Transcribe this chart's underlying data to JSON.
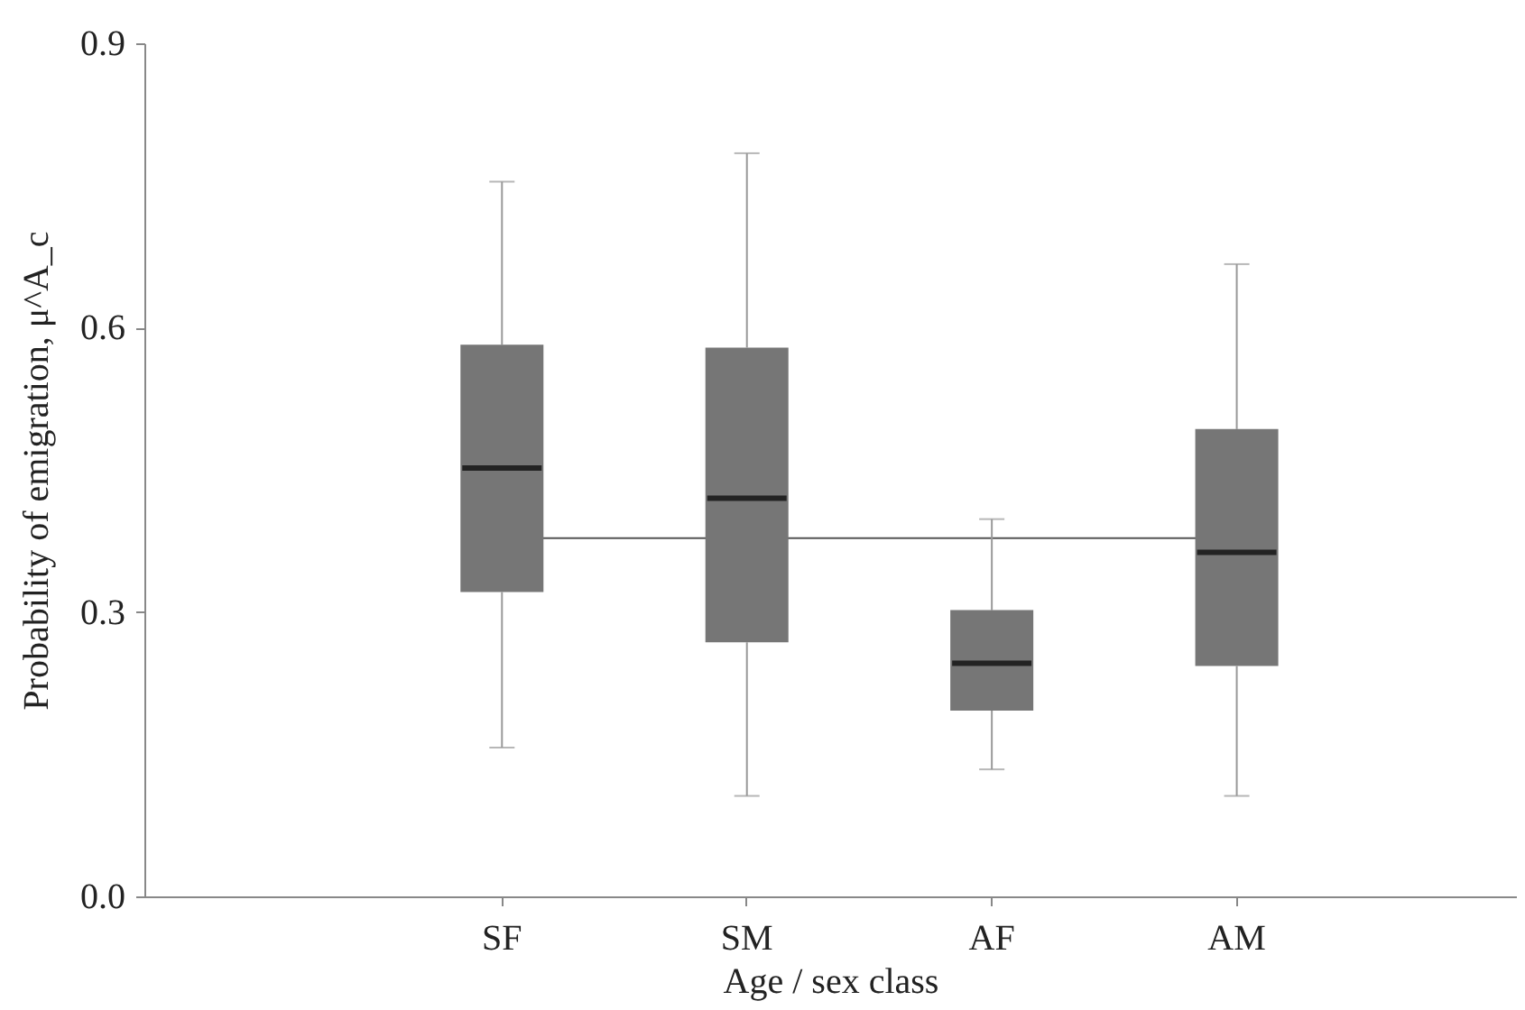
{
  "chart_data": {
    "type": "box",
    "xlabel": "Age / sex class",
    "ylabel": "Probability of  emigration, μ^A_c",
    "categories": [
      "SF",
      "SM",
      "AF",
      "AM"
    ],
    "series": [
      {
        "color": "#767676",
        "boxes": [
          {
            "low": 0.157,
            "q1": 0.321,
            "median": 0.452,
            "q3": 0.582,
            "high": 0.754
          },
          {
            "low": 0.106,
            "q1": 0.268,
            "median": 0.42,
            "q3": 0.579,
            "high": 0.784
          },
          {
            "low": 0.134,
            "q1": 0.196,
            "median": 0.246,
            "q3": 0.302,
            "high": 0.398
          },
          {
            "low": 0.106,
            "q1": 0.243,
            "median": 0.363,
            "q3": 0.493,
            "high": 0.667
          }
        ]
      }
    ],
    "ylim": [
      0,
      0.9
    ],
    "yticks": [
      {
        "value": 0,
        "label": "0.0"
      },
      {
        "value": 0.3,
        "label": "0.3"
      },
      {
        "value": 0.6,
        "label": "0.6"
      },
      {
        "value": 0.9,
        "label": "0.9"
      }
    ],
    "ref_lines": [
      {
        "axis": "y",
        "value": 0.378,
        "color": "#555555"
      }
    ],
    "grid": false
  }
}
